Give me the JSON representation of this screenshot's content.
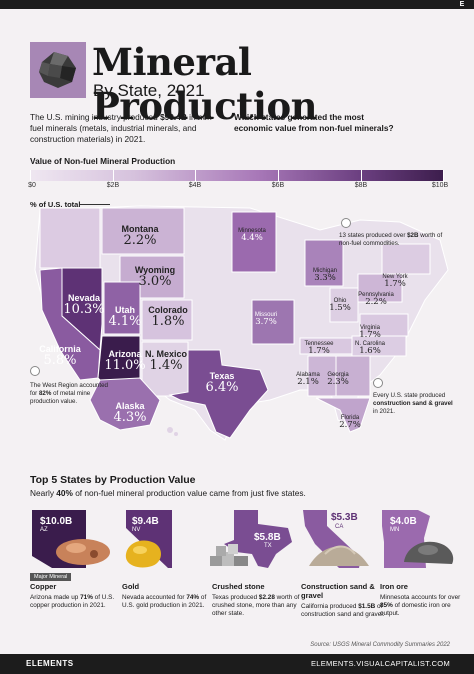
{
  "header": {
    "title": "Mineral Production",
    "subtitle": "By State, 2021",
    "intro_pre": "The U.S. mining industry produced ",
    "intro_bold": "$90.4B",
    "intro_post": " in non-fuel minerals (metals, industrial minerals, and construction materials) in 2021.",
    "question": "Which states generated the most economic value from non-fuel minerals?"
  },
  "scale": {
    "title": "Value of Non-fuel Mineral Production",
    "ticks": [
      "$0",
      "$2B",
      "$4B",
      "$6B",
      "$8B",
      "$10B"
    ],
    "colors": [
      "#efe7f1",
      "#d6c2dd",
      "#a878b8",
      "#6b3f80",
      "#3c1d4c"
    ]
  },
  "map": {
    "pct_label": "% of U.S. total"
  },
  "chart_data": {
    "type": "choropleth",
    "title": "Mineral Production",
    "subtitle": "By State, 2021",
    "value_label": "% of U.S. total",
    "states": [
      {
        "name": "Montana",
        "pct": "2.2%"
      },
      {
        "name": "Minnesota",
        "pct": "4.4%"
      },
      {
        "name": "Wyoming",
        "pct": "3.0%"
      },
      {
        "name": "Michigan",
        "pct": "3.3%"
      },
      {
        "name": "New York",
        "pct": "1.7%"
      },
      {
        "name": "Nevada",
        "pct": "10.3%"
      },
      {
        "name": "Utah",
        "pct": "4.1%"
      },
      {
        "name": "Colorado",
        "pct": "1.8%"
      },
      {
        "name": "Missouri",
        "pct": "3.7%"
      },
      {
        "name": "Ohio",
        "pct": "1.5%"
      },
      {
        "name": "Pennsylvania",
        "pct": "2.2%"
      },
      {
        "name": "Virginia",
        "pct": "1.7%"
      },
      {
        "name": "California",
        "pct": "5.8%"
      },
      {
        "name": "Arizona",
        "pct": "11.0%"
      },
      {
        "name": "N. Mexico",
        "pct": "1.4%"
      },
      {
        "name": "Tennessee",
        "pct": "1.7%"
      },
      {
        "name": "N. Carolina",
        "pct": "1.6%"
      },
      {
        "name": "Texas",
        "pct": "6.4%"
      },
      {
        "name": "Alabama",
        "pct": "2.1%"
      },
      {
        "name": "Georgia",
        "pct": "2.3%"
      },
      {
        "name": "Florida",
        "pct": "2.7%"
      },
      {
        "name": "Alaska",
        "pct": "4.3%"
      }
    ],
    "top5": [
      {
        "state": "AZ",
        "value": "$10.0B",
        "mineral": "Copper"
      },
      {
        "state": "NV",
        "value": "$9.4B",
        "mineral": "Gold"
      },
      {
        "state": "TX",
        "value": "$5.8B",
        "mineral": "Crushed stone"
      },
      {
        "state": "CA",
        "value": "$5.3B",
        "mineral": "Construction sand & gravel"
      },
      {
        "state": "MN",
        "value": "$4.0B",
        "mineral": "Iron ore"
      }
    ]
  },
  "notes": {
    "n13_pre": "13 states produced over ",
    "n13_bold": "$2B",
    "n13_post": " worth of non-fuel commodities.",
    "west_pre": "The West Region accounted for ",
    "west_bold": "82%",
    "west_post": " of metal mine production value.",
    "every_pre": "Every U.S. state produced ",
    "every_bold": "construction sand & gravel",
    "every_post": " in 2021."
  },
  "top5": {
    "title": "Top 5 States by Production Value",
    "sub_pre": "Nearly ",
    "sub_bold": "40%",
    "sub_post": " of non-fuel mineral production value came from just five states.",
    "major_label": "Major Mineral",
    "cards": [
      {
        "value": "$10.0B",
        "abbr": "AZ",
        "name": "Copper",
        "desc_pre": "Arizona made up ",
        "desc_bold": "71%",
        "desc_post": " of U.S. copper production in 2021."
      },
      {
        "value": "$9.4B",
        "abbr": "NV",
        "name": "Gold",
        "desc_pre": "Nevada accounted for ",
        "desc_bold": "74%",
        "desc_post": " of U.S. gold production in 2021."
      },
      {
        "value": "$5.8B",
        "abbr": "TX",
        "name": "Crushed stone",
        "desc_pre": "Texas produced ",
        "desc_bold": "$2.28",
        "desc_post": " worth of crushed stone, more than any other state."
      },
      {
        "value": "$5.3B",
        "abbr": "CA",
        "name": "Construction sand & gravel",
        "desc_pre": "California produced ",
        "desc_bold": "$1.5B",
        "desc_post": " of construction sand and gravel."
      },
      {
        "value": "$4.0B",
        "abbr": "MN",
        "name": "Iron ore",
        "desc_pre": "Minnesota accounts for over ",
        "desc_bold": "85%",
        "desc_post": " of domestic iron ore output."
      }
    ]
  },
  "footer": {
    "source": "Source: USGS Mineral Commodity Summaries 2022",
    "brand": "ELEMENTS",
    "url": "ELEMENTS.VISUALCAPITALIST.COM",
    "logo": "E"
  }
}
